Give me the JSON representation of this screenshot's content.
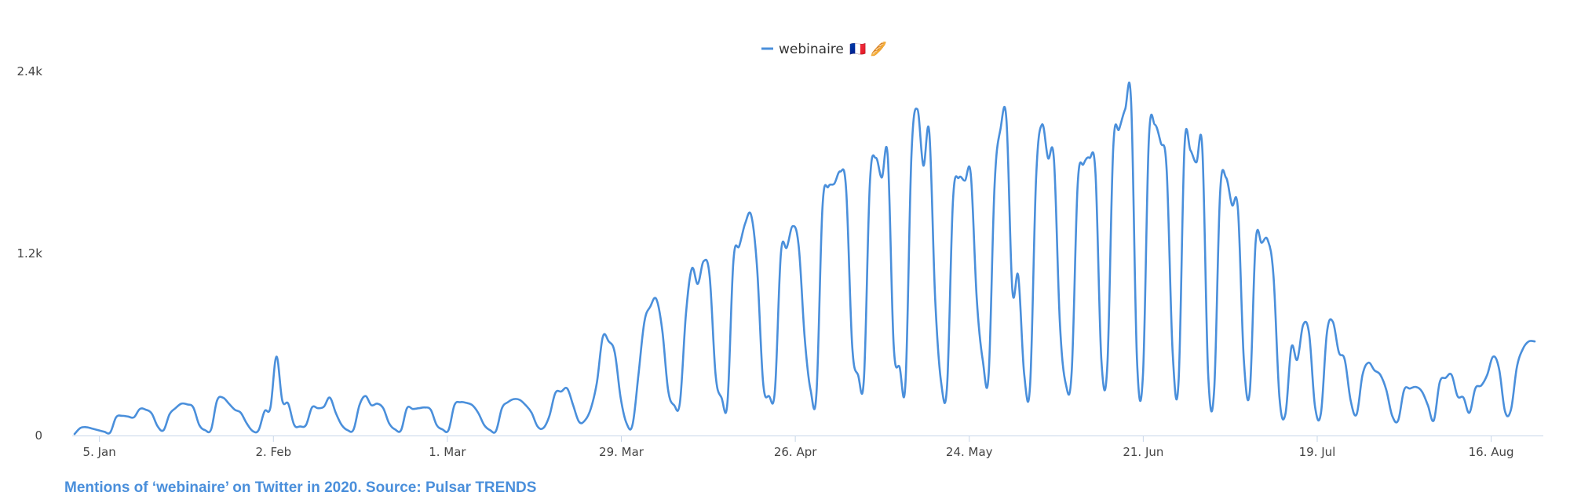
{
  "chart_data": {
    "type": "line",
    "x_tick_labels": [
      "5. Jan",
      "2. Feb",
      "1. Mar",
      "29. Mar",
      "26. Apr",
      "24. May",
      "21. Jun",
      "19. Jul",
      "16. Aug"
    ],
    "y_tick_labels": [
      "0",
      "1.2k",
      "2.4k"
    ],
    "ylim": [
      0,
      2400
    ],
    "grid": false,
    "legend_position": "top-center",
    "series": [
      {
        "name": "webinaire",
        "color": "#4a8fdb",
        "legend_emoji": "🇫🇷 🥖",
        "x_start": "2020-01-01",
        "x_end": "2020-08-23",
        "values": [
          10,
          50,
          55,
          45,
          35,
          25,
          20,
          120,
          130,
          125,
          120,
          175,
          170,
          145,
          60,
          35,
          140,
          180,
          210,
          205,
          185,
          70,
          35,
          40,
          230,
          250,
          210,
          170,
          150,
          80,
          30,
          35,
          160,
          185,
          520,
          230,
          210,
          70,
          60,
          70,
          185,
          180,
          190,
          250,
          150,
          70,
          35,
          40,
          200,
          260,
          200,
          210,
          180,
          80,
          40,
          35,
          180,
          175,
          180,
          185,
          170,
          70,
          40,
          35,
          200,
          220,
          215,
          200,
          150,
          70,
          35,
          30,
          180,
          220,
          240,
          235,
          200,
          150,
          60,
          50,
          130,
          280,
          290,
          310,
          200,
          90,
          100,
          180,
          350,
          650,
          620,
          550,
          250,
          80,
          70,
          400,
          750,
          850,
          900,
          700,
          300,
          200,
          220,
          800,
          1100,
          1000,
          1150,
          1050,
          400,
          250,
          220,
          1150,
          1250,
          1400,
          1450,
          1100,
          350,
          260,
          300,
          1200,
          1240,
          1380,
          1250,
          650,
          300,
          280,
          1500,
          1640,
          1660,
          1740,
          1620,
          600,
          400,
          380,
          1670,
          1830,
          1700,
          1840,
          600,
          450,
          350,
          1850,
          2150,
          1780,
          2000,
          900,
          350,
          330,
          1550,
          1700,
          1680,
          1720,
          900,
          500,
          400,
          1650,
          2020,
          2080,
          960,
          1050,
          400,
          340,
          1700,
          2050,
          1830,
          1820,
          750,
          340,
          420,
          1650,
          1790,
          1830,
          1730,
          500,
          460,
          1900,
          2020,
          2150,
          2200,
          500,
          400,
          1950,
          2050,
          1930,
          1750,
          550,
          350,
          1900,
          1880,
          1800,
          1890,
          400,
          300,
          1600,
          1700,
          1520,
          1490,
          500,
          290,
          1280,
          1270,
          1290,
          1050,
          250,
          140,
          580,
          500,
          730,
          670,
          190,
          150,
          680,
          750,
          550,
          500,
          230,
          140,
          400,
          480,
          430,
          400,
          300,
          130,
          100,
          300,
          310,
          320,
          290,
          200,
          100,
          350,
          380,
          400,
          260,
          250,
          150,
          310,
          330,
          400,
          520,
          440,
          160,
          170,
          450,
          570,
          620,
          620
        ]
      }
    ]
  },
  "caption": "Mentions of ‘webinaire’ on Twitter in 2020. Source: Pulsar TRENDS"
}
